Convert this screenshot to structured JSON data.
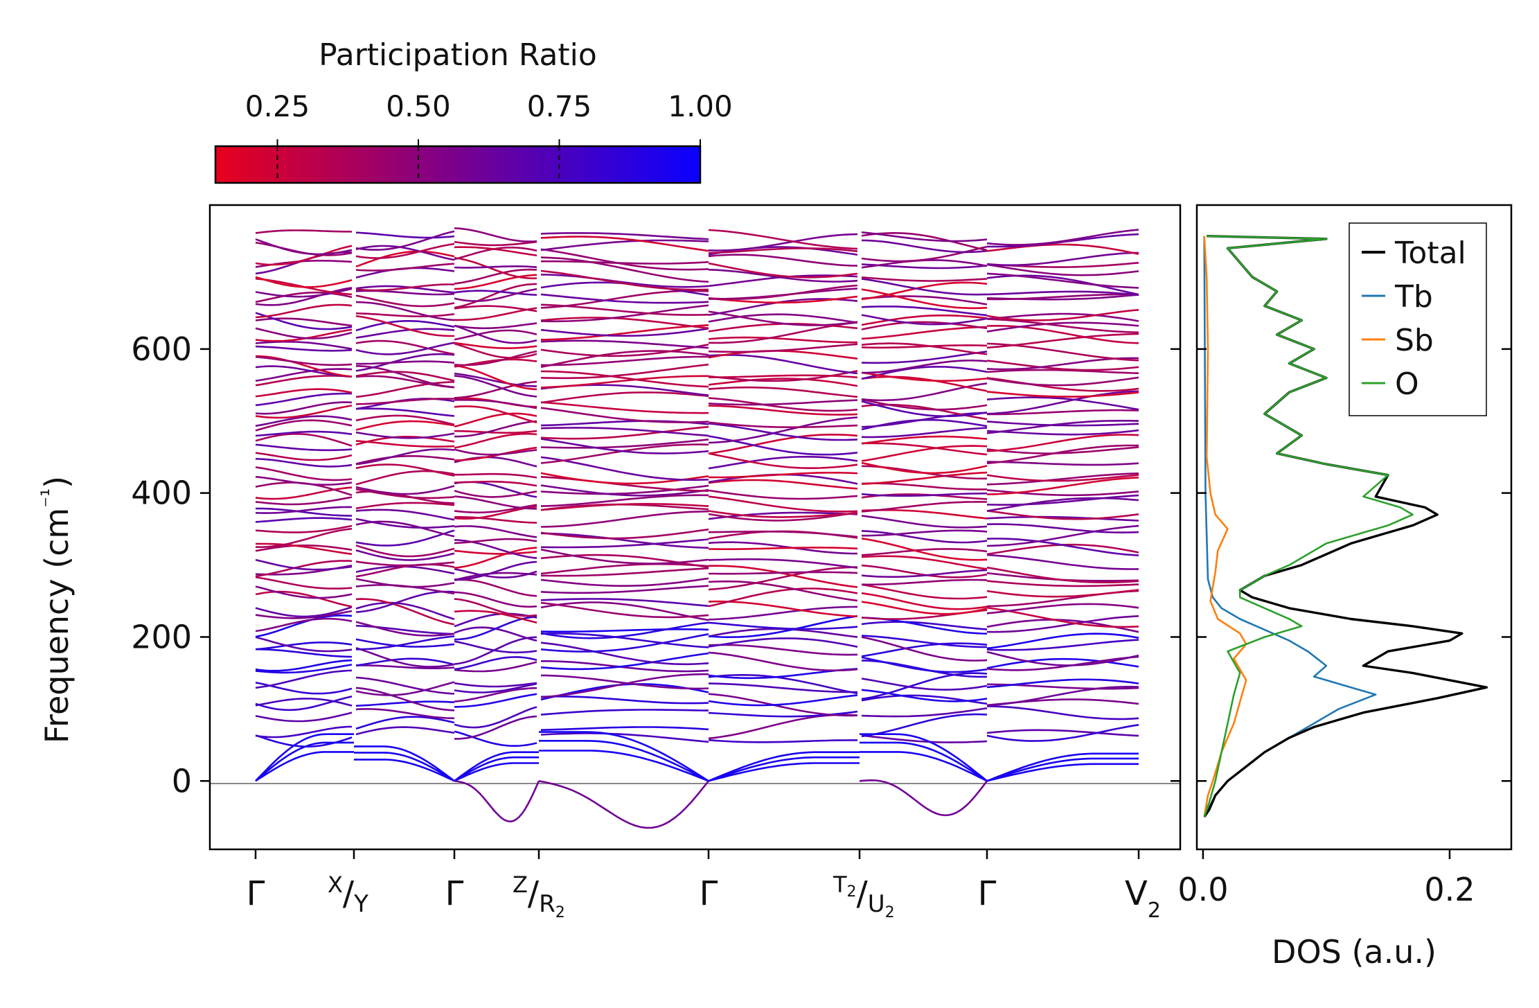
{
  "colorbar": {
    "title": "Participation Ratio",
    "ticks": [
      "0.25",
      "0.50",
      "0.75",
      "1.00"
    ],
    "tick_values": [
      0.25,
      0.5,
      0.75,
      1.0
    ],
    "range": [
      0.14,
      1.0
    ],
    "colors": [
      "#e8001c",
      "#0a00ff"
    ]
  },
  "chart_data": [
    {
      "type": "line",
      "name": "phonon-dispersion",
      "ylabel": "Frequency (cm⁻¹)",
      "xlabel": "",
      "ylim": [
        -95,
        800
      ],
      "yticks": [
        0,
        200,
        400,
        600
      ],
      "k_path": [
        {
          "label": "Γ",
          "kind": "plain"
        },
        {
          "label": "X/Y",
          "kind": "split",
          "top": "X",
          "bottom": "Y",
          "bottom_sub": ""
        },
        {
          "label": "Γ",
          "kind": "plain"
        },
        {
          "label": "Z/R₂",
          "kind": "split",
          "top": "Z",
          "top_sub": "",
          "bottom": "R",
          "bottom_sub": "2"
        },
        {
          "label": "Γ",
          "kind": "plain"
        },
        {
          "label": "T₂/U₂",
          "kind": "split",
          "top": "T",
          "top_sub": "2",
          "bottom": "U",
          "bottom_sub": "2"
        },
        {
          "label": "Γ",
          "kind": "plain"
        },
        {
          "label": "V₂",
          "kind": "sub",
          "main": "V",
          "sub": "2"
        }
      ],
      "segment_breaks": [
        1,
        3,
        5
      ],
      "acoustic_max_per_segment": [
        65,
        48,
        40,
        68,
        40,
        65,
        38
      ],
      "band_frequency_range": [
        60,
        760
      ],
      "num_bands": 68,
      "color_scale": "participation_ratio"
    },
    {
      "type": "line",
      "name": "density-of-states",
      "xlabel": "DOS (a.u.)",
      "xlim": [
        -0.005,
        0.25
      ],
      "xticks": [
        0.0,
        0.2
      ],
      "xtick_labels": [
        "0.0",
        "0.2"
      ],
      "ylim": [
        -95,
        800
      ],
      "legend_position": "top-right",
      "series": [
        {
          "name": "Total",
          "color": "#000000",
          "points": [
            [
              0.001,
              -50
            ],
            [
              0.005,
              -40
            ],
            [
              0.01,
              -20
            ],
            [
              0.02,
              0
            ],
            [
              0.035,
              20
            ],
            [
              0.05,
              40
            ],
            [
              0.07,
              60
            ],
            [
              0.09,
              75
            ],
            [
              0.11,
              85
            ],
            [
              0.13,
              95
            ],
            [
              0.16,
              105
            ],
            [
              0.19,
              115
            ],
            [
              0.23,
              130
            ],
            [
              0.2,
              140
            ],
            [
              0.17,
              150
            ],
            [
              0.13,
              160
            ],
            [
              0.15,
              180
            ],
            [
              0.2,
              195
            ],
            [
              0.21,
              205
            ],
            [
              0.17,
              215
            ],
            [
              0.12,
              225
            ],
            [
              0.07,
              240
            ],
            [
              0.04,
              255
            ],
            [
              0.03,
              265
            ],
            [
              0.05,
              285
            ],
            [
              0.08,
              300
            ],
            [
              0.12,
              330
            ],
            [
              0.15,
              345
            ],
            [
              0.17,
              355
            ],
            [
              0.19,
              370
            ],
            [
              0.18,
              380
            ],
            [
              0.14,
              395
            ],
            [
              0.15,
              425
            ],
            [
              0.1,
              440
            ],
            [
              0.06,
              455
            ],
            [
              0.08,
              480
            ],
            [
              0.05,
              510
            ],
            [
              0.07,
              540
            ],
            [
              0.1,
              560
            ],
            [
              0.07,
              580
            ],
            [
              0.09,
              600
            ],
            [
              0.06,
              620
            ],
            [
              0.08,
              640
            ],
            [
              0.05,
              660
            ],
            [
              0.06,
              680
            ],
            [
              0.04,
              700
            ],
            [
              0.03,
              720
            ],
            [
              0.02,
              740
            ],
            [
              0.1,
              753
            ],
            [
              0.003,
              757
            ]
          ]
        },
        {
          "name": "Tb",
          "color": "#1f77b4",
          "points": [
            [
              0.001,
              -50
            ],
            [
              0.004,
              -40
            ],
            [
              0.01,
              -20
            ],
            [
              0.02,
              0
            ],
            [
              0.035,
              20
            ],
            [
              0.05,
              40
            ],
            [
              0.07,
              60
            ],
            [
              0.09,
              80
            ],
            [
              0.11,
              100
            ],
            [
              0.14,
              120
            ],
            [
              0.12,
              130
            ],
            [
              0.09,
              145
            ],
            [
              0.1,
              160
            ],
            [
              0.085,
              180
            ],
            [
              0.07,
              195
            ],
            [
              0.05,
              210
            ],
            [
              0.03,
              225
            ],
            [
              0.015,
              240
            ],
            [
              0.008,
              255
            ],
            [
              0.004,
              280
            ],
            [
              0.002,
              400
            ],
            [
              0.001,
              757
            ]
          ]
        },
        {
          "name": "Sb",
          "color": "#ff7f0e",
          "points": [
            [
              0.001,
              -50
            ],
            [
              0.004,
              -20
            ],
            [
              0.008,
              0
            ],
            [
              0.015,
              40
            ],
            [
              0.025,
              80
            ],
            [
              0.03,
              110
            ],
            [
              0.035,
              140
            ],
            [
              0.025,
              170
            ],
            [
              0.035,
              190
            ],
            [
              0.03,
              205
            ],
            [
              0.012,
              225
            ],
            [
              0.006,
              250
            ],
            [
              0.01,
              290
            ],
            [
              0.012,
              320
            ],
            [
              0.02,
              350
            ],
            [
              0.01,
              370
            ],
            [
              0.006,
              400
            ],
            [
              0.003,
              450
            ],
            [
              0.004,
              600
            ],
            [
              0.003,
              700
            ],
            [
              0.001,
              757
            ]
          ]
        },
        {
          "name": "O",
          "color": "#2ca02c",
          "points": [
            [
              0.001,
              -50
            ],
            [
              0.005,
              -30
            ],
            [
              0.01,
              0
            ],
            [
              0.015,
              40
            ],
            [
              0.02,
              80
            ],
            [
              0.025,
              120
            ],
            [
              0.03,
              150
            ],
            [
              0.02,
              180
            ],
            [
              0.05,
              200
            ],
            [
              0.08,
              215
            ],
            [
              0.07,
              225
            ],
            [
              0.05,
              240
            ],
            [
              0.03,
              255
            ],
            [
              0.03,
              265
            ],
            [
              0.05,
              285
            ],
            [
              0.07,
              300
            ],
            [
              0.1,
              330
            ],
            [
              0.13,
              345
            ],
            [
              0.15,
              355
            ],
            [
              0.17,
              370
            ],
            [
              0.16,
              380
            ],
            [
              0.13,
              395
            ],
            [
              0.15,
              425
            ],
            [
              0.1,
              440
            ],
            [
              0.06,
              455
            ],
            [
              0.08,
              480
            ],
            [
              0.05,
              510
            ],
            [
              0.07,
              540
            ],
            [
              0.1,
              560
            ],
            [
              0.07,
              580
            ],
            [
              0.09,
              600
            ],
            [
              0.06,
              620
            ],
            [
              0.08,
              640
            ],
            [
              0.05,
              660
            ],
            [
              0.06,
              680
            ],
            [
              0.04,
              700
            ],
            [
              0.03,
              720
            ],
            [
              0.02,
              740
            ],
            [
              0.1,
              753
            ],
            [
              0.003,
              757
            ]
          ]
        }
      ]
    }
  ]
}
